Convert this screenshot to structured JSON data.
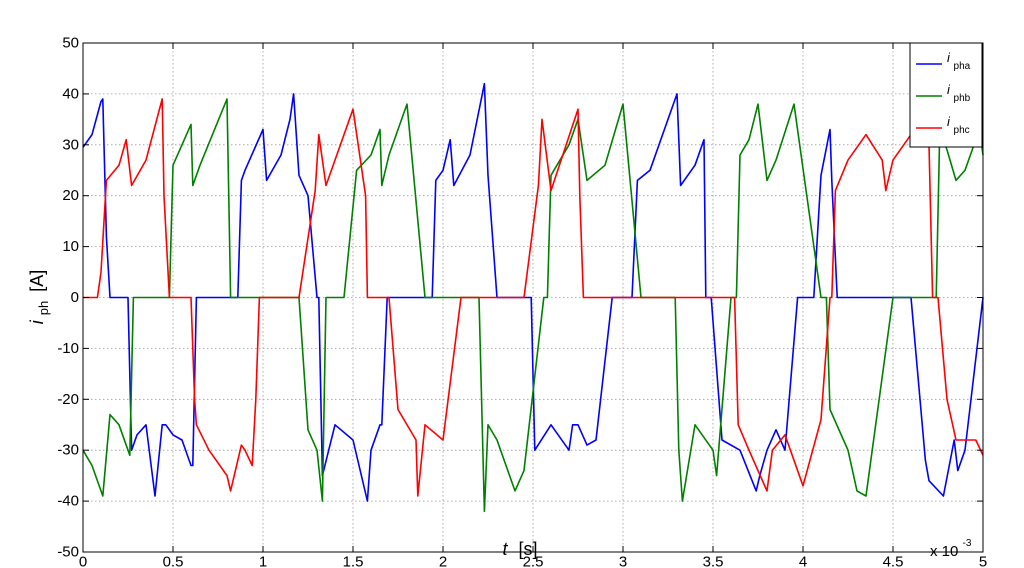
{
  "chart_data": {
    "type": "line",
    "xlabel_main": "t",
    "xlabel_unit": "[s]",
    "ylabel_main": "i",
    "ylabel_sub": "ph",
    "ylabel_unit": "[A]",
    "xlim": [
      0,
      5
    ],
    "ylim": [
      -50,
      50
    ],
    "x_multiplier_base": "x 10",
    "x_multiplier_exp": "-3",
    "x_ticks": [
      0,
      0.5,
      1,
      1.5,
      2,
      2.5,
      3,
      3.5,
      4,
      4.5,
      5
    ],
    "x_tick_labels": [
      "0",
      "0.5",
      "1",
      "1.5",
      "2",
      "2.5",
      "3",
      "3.5",
      "4",
      "4.5",
      "5"
    ],
    "y_ticks": [
      -50,
      -40,
      -30,
      -20,
      -10,
      0,
      10,
      20,
      30,
      40,
      50
    ],
    "y_tick_labels": [
      "-50",
      "-40",
      "-30",
      "-20",
      "-10",
      "0",
      "10",
      "20",
      "30",
      "40",
      "50"
    ],
    "grid": true,
    "legend_position": "top-right",
    "series": [
      {
        "name_main": "i",
        "name_sub": "pha",
        "color": "#0000ff",
        "x": [
          0,
          0.05,
          0.1,
          0.11,
          0.13,
          0.15,
          0.2,
          0.25,
          0.27,
          0.3,
          0.35,
          0.4,
          0.44,
          0.46,
          0.5,
          0.55,
          0.6,
          0.61,
          0.63,
          0.7,
          0.8,
          0.86,
          0.88,
          0.9,
          1.0,
          1.02,
          1.1,
          1.15,
          1.17,
          1.2,
          1.25,
          1.3,
          1.31,
          1.33,
          1.4,
          1.5,
          1.58,
          1.6,
          1.65,
          1.66,
          1.69,
          1.75,
          1.85,
          1.94,
          1.96,
          2.0,
          2.04,
          2.06,
          2.15,
          2.23,
          2.25,
          2.3,
          2.4,
          2.49,
          2.51,
          2.6,
          2.7,
          2.72,
          2.75,
          2.8,
          2.85,
          2.94,
          2.96,
          3.0,
          3.05,
          3.08,
          3.15,
          3.25,
          3.3,
          3.32,
          3.4,
          3.45,
          3.46,
          3.49,
          3.55,
          3.65,
          3.74,
          3.76,
          3.8,
          3.85,
          3.9,
          3.97,
          4.0,
          4.06,
          4.1,
          4.15,
          4.16,
          4.19,
          4.25,
          4.35,
          4.44,
          4.46,
          4.5,
          4.55,
          4.6,
          4.68,
          4.7,
          4.78,
          4.84,
          4.86,
          4.9,
          5.0
        ],
        "y": [
          29.5,
          32,
          38.5,
          39,
          12,
          0,
          0,
          0,
          -30,
          -27,
          -25,
          -39,
          -25,
          -25,
          -27,
          -28,
          -33,
          -33,
          0,
          0,
          0,
          0,
          23,
          25,
          33,
          23,
          28,
          35,
          40,
          24,
          20,
          0,
          0,
          -35,
          -25,
          -28,
          -40,
          -30,
          -25,
          -25,
          0,
          0,
          0,
          0,
          23,
          25,
          31,
          22,
          28,
          42,
          24,
          0,
          0,
          0,
          -30,
          -25,
          -30,
          -25,
          -25,
          -29,
          -28,
          0,
          0,
          0,
          0,
          23,
          25,
          35,
          40,
          22,
          26,
          31,
          0,
          0,
          -28,
          -30,
          -38,
          -35,
          -30,
          -26,
          -30,
          0,
          0,
          0,
          24,
          33,
          23,
          0,
          0,
          0,
          0,
          0,
          0,
          0,
          0,
          -32,
          -36,
          -39,
          -28,
          -34,
          -30,
          0
        ]
      },
      {
        "name_main": "i",
        "name_sub": "phb",
        "color": "#008000",
        "x": [
          0,
          0.05,
          0.1,
          0.11,
          0.15,
          0.2,
          0.25,
          0.26,
          0.28,
          0.35,
          0.45,
          0.48,
          0.5,
          0.55,
          0.6,
          0.61,
          0.65,
          0.8,
          0.82,
          0.84,
          0.88,
          0.95,
          1.0,
          1.1,
          1.18,
          1.2,
          1.25,
          1.3,
          1.33,
          1.35,
          1.45,
          1.52,
          1.6,
          1.65,
          1.66,
          1.7,
          1.8,
          1.9,
          2.0,
          2.04,
          2.06,
          2.2,
          2.23,
          2.25,
          2.3,
          2.4,
          2.45,
          2.56,
          2.58,
          2.6,
          2.7,
          2.75,
          2.8,
          2.9,
          3.0,
          3.1,
          3.2,
          3.29,
          3.31,
          3.33,
          3.4,
          3.5,
          3.52,
          3.6,
          3.63,
          3.65,
          3.7,
          3.75,
          3.8,
          3.85,
          3.95,
          4.1,
          4.13,
          4.15,
          4.25,
          4.3,
          4.35,
          4.5,
          4.55,
          4.65,
          4.7,
          4.74,
          4.76,
          4.8,
          4.85,
          4.9,
          4.98,
          5.0
        ],
        "y": [
          -30,
          -33,
          -38,
          -39,
          -23,
          -25,
          -30,
          -31,
          0,
          0,
          0,
          0,
          26,
          30,
          34,
          22,
          26,
          39,
          0,
          0,
          0,
          0,
          0,
          0,
          0,
          0,
          -26,
          -30,
          -40,
          0,
          0,
          25,
          28,
          33,
          22,
          28,
          38,
          0,
          0,
          0,
          0,
          0,
          -42,
          -25,
          -28,
          -38,
          -34,
          0,
          0,
          24,
          30,
          35,
          23,
          26,
          38,
          0,
          0,
          0,
          -30,
          -40,
          -25,
          -30,
          -35,
          0,
          0,
          28,
          31,
          38,
          23,
          27,
          38,
          0,
          0,
          -22,
          -30,
          -38,
          -39,
          0,
          0,
          0,
          0,
          0,
          33,
          29,
          23,
          25,
          33,
          28
        ]
      },
      {
        "name_main": "i",
        "name_sub": "phc",
        "color": "#ff0000",
        "x": [
          0,
          0.08,
          0.1,
          0.13,
          0.2,
          0.24,
          0.27,
          0.35,
          0.44,
          0.45,
          0.48,
          0.55,
          0.6,
          0.62,
          0.63,
          0.7,
          0.8,
          0.82,
          0.88,
          0.9,
          0.94,
          0.96,
          0.98,
          1.05,
          1.15,
          1.2,
          1.29,
          1.31,
          1.35,
          1.5,
          1.57,
          1.58,
          1.65,
          1.7,
          1.75,
          1.85,
          1.86,
          1.9,
          2.0,
          2.1,
          2.2,
          2.3,
          2.35,
          2.4,
          2.45,
          2.53,
          2.55,
          2.6,
          2.75,
          2.76,
          2.78,
          2.85,
          2.95,
          3.05,
          3.1,
          3.2,
          3.3,
          3.4,
          3.5,
          3.6,
          3.62,
          3.64,
          3.7,
          3.8,
          3.83,
          3.9,
          4.0,
          4.1,
          4.15,
          4.16,
          4.18,
          4.25,
          4.35,
          4.44,
          4.46,
          4.5,
          4.6,
          4.7,
          4.72,
          4.75,
          4.8,
          4.85,
          4.96,
          5.0
        ],
        "y": [
          0,
          0,
          5,
          23,
          26,
          31,
          22,
          27,
          39,
          20,
          0,
          0,
          0,
          -20,
          -25,
          -30,
          -35,
          -38,
          -29,
          -30,
          -33,
          -20,
          0,
          0,
          0,
          0,
          21,
          32,
          22,
          37,
          20,
          0,
          0,
          0,
          -22,
          -28,
          -39,
          -25,
          -28,
          0,
          0,
          0,
          0,
          0,
          0,
          22,
          35,
          21,
          37,
          20,
          0,
          0,
          0,
          0,
          0,
          0,
          0,
          0,
          0,
          0,
          0,
          -25,
          -30,
          -38,
          -30,
          -27,
          -37,
          -24,
          0,
          0,
          21,
          27,
          32,
          27,
          21,
          27,
          32,
          30,
          0,
          0,
          -20,
          -28,
          -28,
          -31
        ]
      }
    ]
  }
}
